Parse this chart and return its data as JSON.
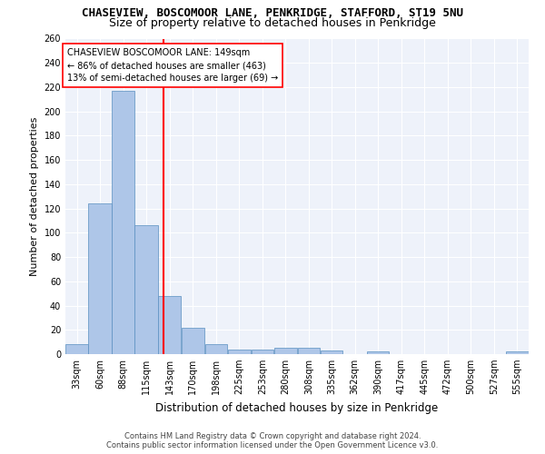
{
  "title": "CHASEVIEW, BOSCOMOOR LANE, PENKRIDGE, STAFFORD, ST19 5NU",
  "subtitle": "Size of property relative to detached houses in Penkridge",
  "xlabel": "Distribution of detached houses by size in Penkridge",
  "ylabel": "Number of detached properties",
  "bar_color": "#aec6e8",
  "bar_edge_color": "#5a8fc0",
  "reference_line_x": 149,
  "reference_line_color": "red",
  "annotation_text": "CHASEVIEW BOSCOMOOR LANE: 149sqm\n← 86% of detached houses are smaller (463)\n13% of semi-detached houses are larger (69) →",
  "annotation_box_color": "white",
  "annotation_box_edge_color": "red",
  "footer_line1": "Contains HM Land Registry data © Crown copyright and database right 2024.",
  "footer_line2": "Contains public sector information licensed under the Open Government Licence v3.0.",
  "bin_edges": [
    33,
    60,
    88,
    115,
    143,
    170,
    198,
    225,
    253,
    280,
    308,
    335,
    362,
    390,
    417,
    445,
    472,
    500,
    527,
    555,
    582
  ],
  "bar_heights": [
    8,
    124,
    217,
    106,
    48,
    22,
    8,
    4,
    4,
    5,
    5,
    3,
    0,
    2,
    0,
    0,
    0,
    0,
    0,
    2
  ],
  "ylim": [
    0,
    260
  ],
  "yticks": [
    0,
    20,
    40,
    60,
    80,
    100,
    120,
    140,
    160,
    180,
    200,
    220,
    240,
    260
  ],
  "bg_color": "#eef2fa",
  "title_fontsize": 9,
  "subtitle_fontsize": 9,
  "ylabel_fontsize": 8,
  "xlabel_fontsize": 8.5,
  "tick_fontsize": 7,
  "footer_fontsize": 6,
  "annotation_fontsize": 7
}
